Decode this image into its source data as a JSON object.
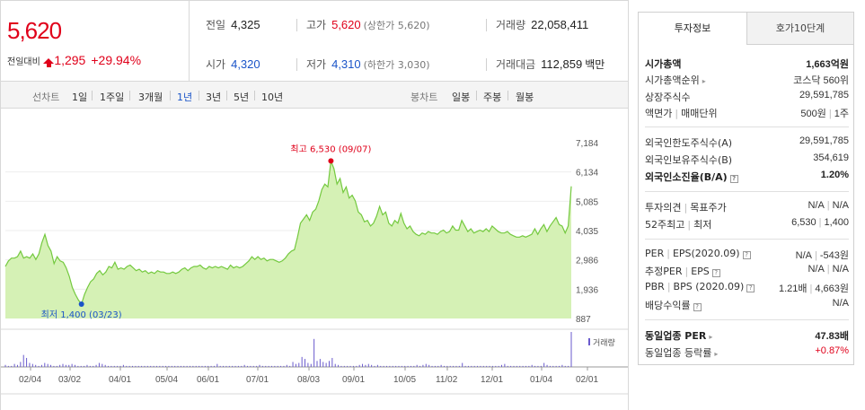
{
  "quote": {
    "price": "5,620",
    "change_label": "전일대비",
    "change_value": "1,295",
    "change_pct": "+29.94%"
  },
  "stats": {
    "prev_close": {
      "label": "전일",
      "value": "4,325"
    },
    "high": {
      "label": "고가",
      "value": "5,620",
      "note": "(상한가 5,620)"
    },
    "volume": {
      "label": "거래량",
      "value": "22,058,411"
    },
    "open": {
      "label": "시가",
      "value": "4,320"
    },
    "low": {
      "label": "저가",
      "value": "4,310",
      "note": "(하한가 3,030)"
    },
    "amount": {
      "label": "거래대금",
      "value": "112,859",
      "unit": "백만"
    }
  },
  "toolbar": {
    "line_label": "선차트",
    "periods": [
      "1일",
      "1주일",
      "3개월",
      "1년",
      "3년",
      "5년",
      "10년"
    ],
    "active_period": "1년",
    "candle_label": "봉차트",
    "candles": [
      "일봉",
      "주봉",
      "월봉"
    ]
  },
  "chart_data": {
    "type": "area",
    "x_ticks": [
      "02/04",
      "03/02",
      "04/01",
      "05/04",
      "06/01",
      "07/01",
      "08/03",
      "09/01",
      "10/05",
      "11/02",
      "12/01",
      "01/04",
      "02/01"
    ],
    "y_ticks": [
      "7,184",
      "6,134",
      "5,085",
      "4,035",
      "2,986",
      "1,936",
      "887"
    ],
    "ylim": [
      887,
      7184
    ],
    "high_annotation": "최고 6,530 (09/07)",
    "low_annotation": "최저 1,400 (03/23)",
    "high": 6530,
    "low": 1400,
    "volume_label": "거래량",
    "price_points": [
      2750,
      2950,
      3050,
      3050,
      3100,
      3300,
      3050,
      3100,
      3050,
      3200,
      3000,
      3200,
      3600,
      3900,
      3500,
      3300,
      2850,
      3100,
      2950,
      2900,
      2700,
      2400,
      2000,
      1750,
      1550,
      1400,
      1750,
      2000,
      2200,
      2300,
      2500,
      2600,
      2450,
      2550,
      2750,
      2700,
      2900,
      2650,
      2700,
      2650,
      2750,
      2800,
      2700,
      2600,
      2650,
      2550,
      2600,
      2500,
      2550,
      2500,
      2600,
      2550,
      2550,
      2500,
      2500,
      2550,
      2500,
      2550,
      2650,
      2700,
      2600,
      2700,
      2750,
      2750,
      2800,
      2700,
      2650,
      2750,
      2700,
      2750,
      2700,
      2750,
      2700,
      2650,
      2800,
      2700,
      2750,
      2700,
      2750,
      2850,
      2950,
      3100,
      3000,
      3100,
      3000,
      3050,
      2950,
      3000,
      3000,
      2950,
      2900,
      2950,
      3050,
      3200,
      3300,
      3350,
      3800,
      4300,
      4450,
      4600,
      4400,
      4700,
      4800,
      5100,
      5500,
      5700,
      5600,
      6530,
      6250,
      5700,
      5900,
      5400,
      5600,
      5200,
      5300,
      5100,
      4700,
      4600,
      4350,
      4400,
      4200,
      4300,
      4550,
      4900,
      4600,
      4700,
      4300,
      4200,
      4400,
      4300,
      4650,
      4300,
      4100,
      4200,
      4000,
      3900,
      3850,
      3950,
      3900,
      4000,
      3950,
      3950,
      3900,
      4000,
      4050,
      3950,
      4000,
      4200,
      4050,
      4050,
      4400,
      4200,
      4000,
      4100,
      3950,
      4000,
      4050,
      4000,
      4100,
      4000,
      4200,
      4100,
      4000,
      3950,
      3950,
      4000,
      3900,
      3850,
      3800,
      3800,
      3850,
      3800,
      3850,
      3900,
      4100,
      3900,
      4100,
      4250,
      4000,
      4200,
      4350,
      4500,
      4250,
      4200,
      3950,
      4200,
      5620
    ],
    "volume_points": [
      2,
      1,
      1,
      3,
      2,
      5,
      12,
      9,
      4,
      3,
      2,
      1,
      2,
      4,
      3,
      2,
      1,
      1,
      2,
      3,
      2,
      2,
      3,
      2,
      1,
      1,
      1,
      2,
      1,
      1,
      2,
      4,
      3,
      2,
      1,
      1,
      1,
      1,
      1,
      2,
      1,
      1,
      1,
      1,
      1,
      1,
      1,
      1,
      1,
      1,
      1,
      1,
      1,
      1,
      1,
      1,
      1,
      1,
      1,
      1,
      1,
      1,
      1,
      1,
      1,
      1,
      1,
      1,
      1,
      1,
      3,
      1,
      1,
      1,
      1,
      1,
      1,
      1,
      1,
      2,
      1,
      1,
      1,
      1,
      2,
      1,
      1,
      1,
      1,
      1,
      1,
      1,
      1,
      2,
      1,
      5,
      3,
      4,
      10,
      8,
      4,
      3,
      28,
      6,
      8,
      5,
      4,
      6,
      9,
      3,
      2,
      1,
      1,
      1,
      1,
      1,
      1,
      2,
      3,
      2,
      3,
      2,
      1,
      2,
      1,
      1,
      1,
      1,
      1,
      1,
      1,
      1,
      1,
      1,
      1,
      1,
      2,
      1,
      2,
      3,
      2,
      1,
      1,
      1,
      2,
      1,
      1,
      1,
      1,
      1,
      1,
      4,
      1,
      1,
      1,
      1,
      1,
      1,
      1,
      1,
      1,
      1,
      1,
      1,
      2,
      3,
      1,
      1,
      1,
      1,
      1,
      1,
      1,
      1,
      2,
      1,
      1,
      1,
      4,
      2,
      1,
      1,
      1,
      1,
      2,
      1,
      1,
      35
    ]
  },
  "panel": {
    "tabs": [
      "투자정보",
      "호가10단계"
    ],
    "market_cap": {
      "label": "시가총액",
      "value": "1,663억원"
    },
    "market_rank": {
      "label": "시가총액순위",
      "value": "코스닥 560위"
    },
    "shares": {
      "label": "상장주식수",
      "value": "29,591,785"
    },
    "face": {
      "label1": "액면가",
      "label2": "매매단위",
      "value1": "500원",
      "value2": "1주"
    },
    "foreign_limit": {
      "label": "외국인한도주식수(A)",
      "value": "29,591,785"
    },
    "foreign_hold": {
      "label": "외국인보유주식수(B)",
      "value": "354,619"
    },
    "foreign_ratio": {
      "label": "외국인소진율(B/A)",
      "value": "1.20%"
    },
    "opinion": {
      "label1": "투자의견",
      "label2": "목표주가",
      "value1": "N/A",
      "value2": "N/A"
    },
    "week52": {
      "label1": "52주최고",
      "label2": "최저",
      "value1": "6,530",
      "value2": "1,400"
    },
    "per_eps": {
      "label1": "PER",
      "label2": "EPS(2020.09)",
      "value1": "N/A",
      "value2": "-543원"
    },
    "est_per_eps": {
      "label1": "추정PER",
      "label2": "EPS",
      "value1": "N/A",
      "value2": "N/A"
    },
    "pbr_bps": {
      "label1": "PBR",
      "label2": "BPS (2020.09)",
      "value1": "1.21배",
      "value2": "4,663원"
    },
    "dividend": {
      "label": "배당수익률",
      "value": "N/A"
    },
    "sector_per": {
      "label": "동일업종 PER",
      "value": "47.83배"
    },
    "sector_rate": {
      "label": "동일업종 등락률",
      "value": "+0.87%"
    }
  },
  "colors": {
    "up": "#e0001a",
    "down": "#1a54c8",
    "area": "#d5f1b5",
    "line": "#74c93f"
  }
}
